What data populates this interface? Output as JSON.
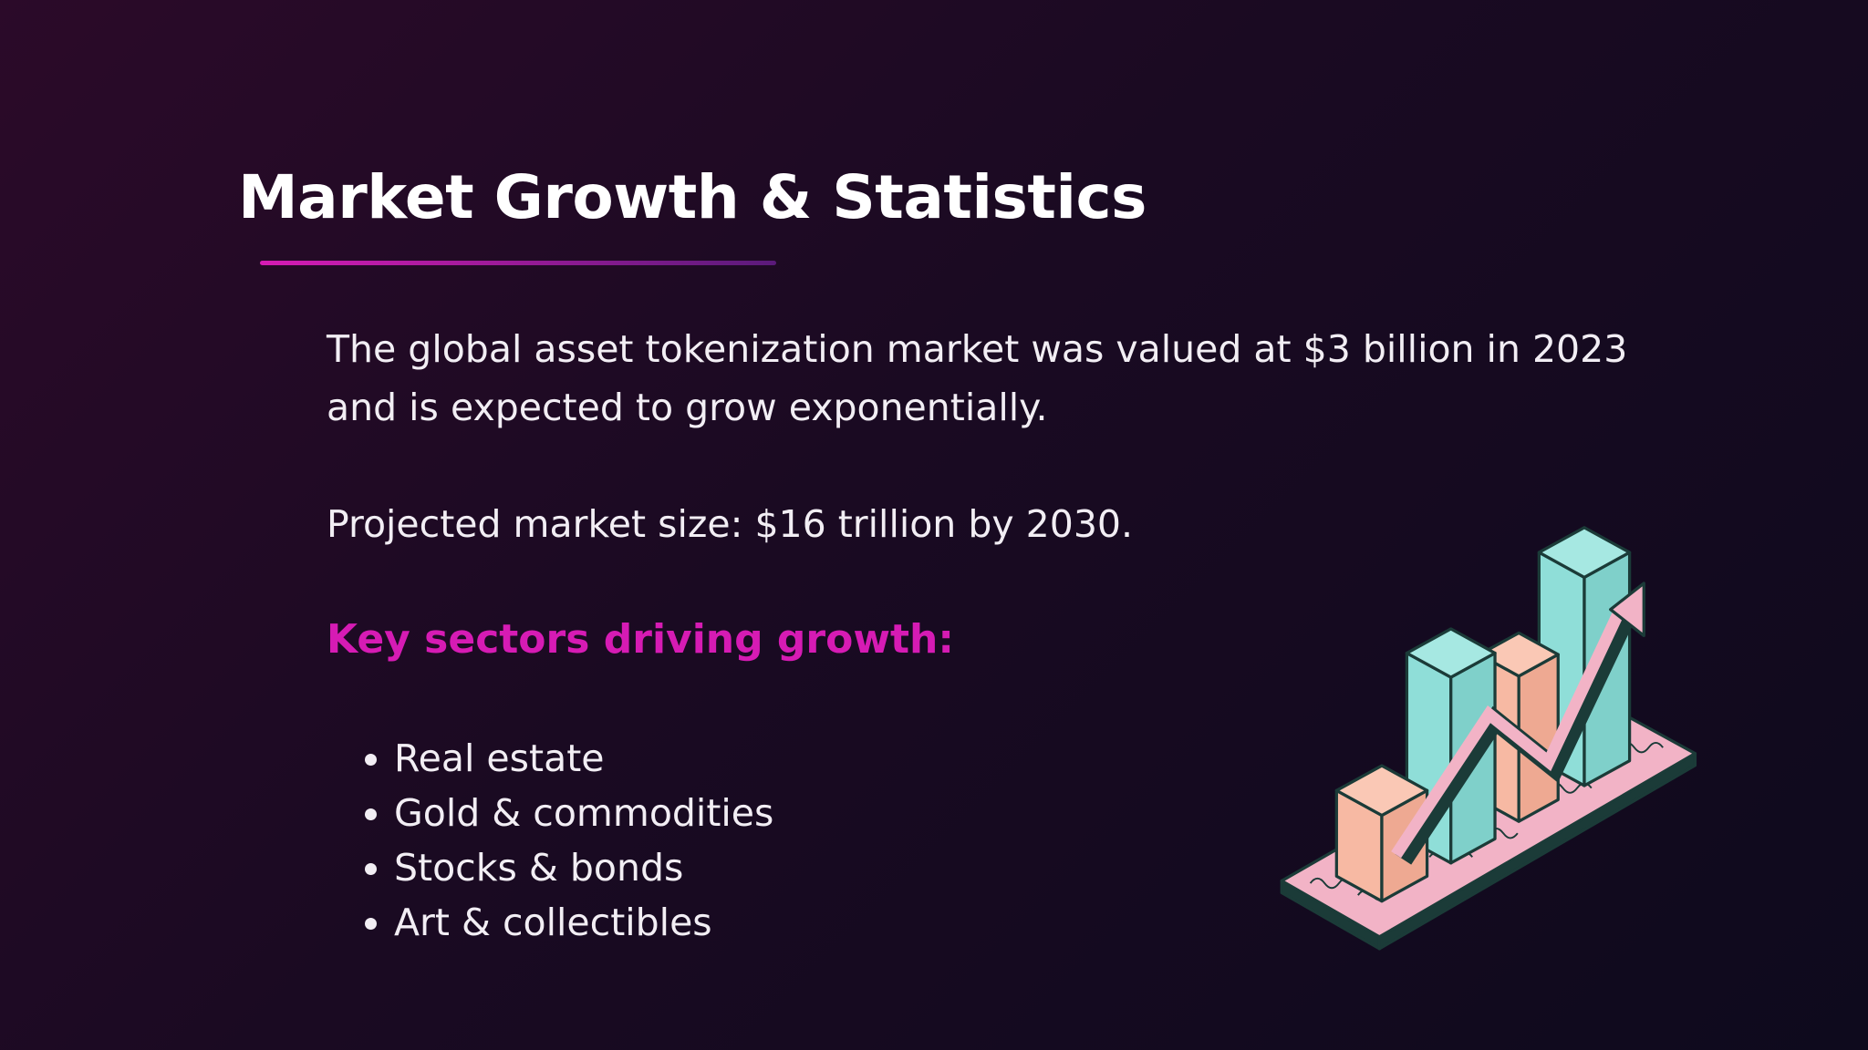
{
  "header": {
    "title": "Market Growth & Statistics"
  },
  "paragraphs": [
    "The global asset tokenization market was valued at $3 billion in 2023 and is expected to grow exponentially.",
    "Projected market size: $16 trillion by 2030."
  ],
  "sectors_heading": "Key sectors driving growth:",
  "sectors": [
    "Real estate",
    "Gold & commodities",
    "Stocks & bonds",
    "Art & collectibles"
  ]
}
